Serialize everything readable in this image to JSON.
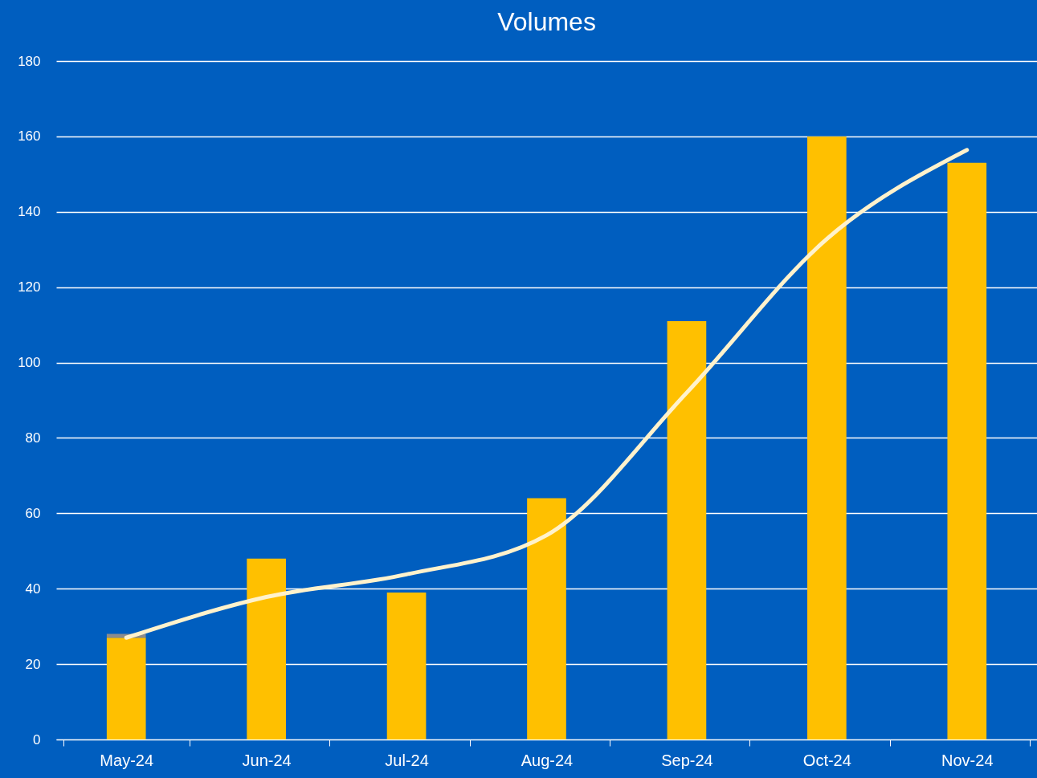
{
  "chart_data": {
    "type": "bar",
    "title": "Volumes",
    "stacked": true,
    "categories": [
      "May-24",
      "Jun-24",
      "Jul-24",
      "Aug-24",
      "Sep-24",
      "Oct-24",
      "Nov-24"
    ],
    "series": [
      {
        "color": "#ffc000",
        "values": [
          27,
          48,
          39,
          64,
          111,
          160,
          153
        ]
      },
      {
        "color": "#8c8c8c",
        "values": [
          1,
          null,
          null,
          null,
          null,
          null,
          null
        ]
      },
      {
        "type": "line",
        "color": "#fff2cc",
        "values": [
          27,
          37.8,
          43.8,
          54.2,
          92,
          132.8,
          156.4
        ]
      }
    ],
    "ylim": [
      0,
      180
    ],
    "yticks": [
      0,
      20,
      40,
      60,
      80,
      100,
      120,
      140,
      160,
      180
    ],
    "grid": "y",
    "legend": false
  }
}
